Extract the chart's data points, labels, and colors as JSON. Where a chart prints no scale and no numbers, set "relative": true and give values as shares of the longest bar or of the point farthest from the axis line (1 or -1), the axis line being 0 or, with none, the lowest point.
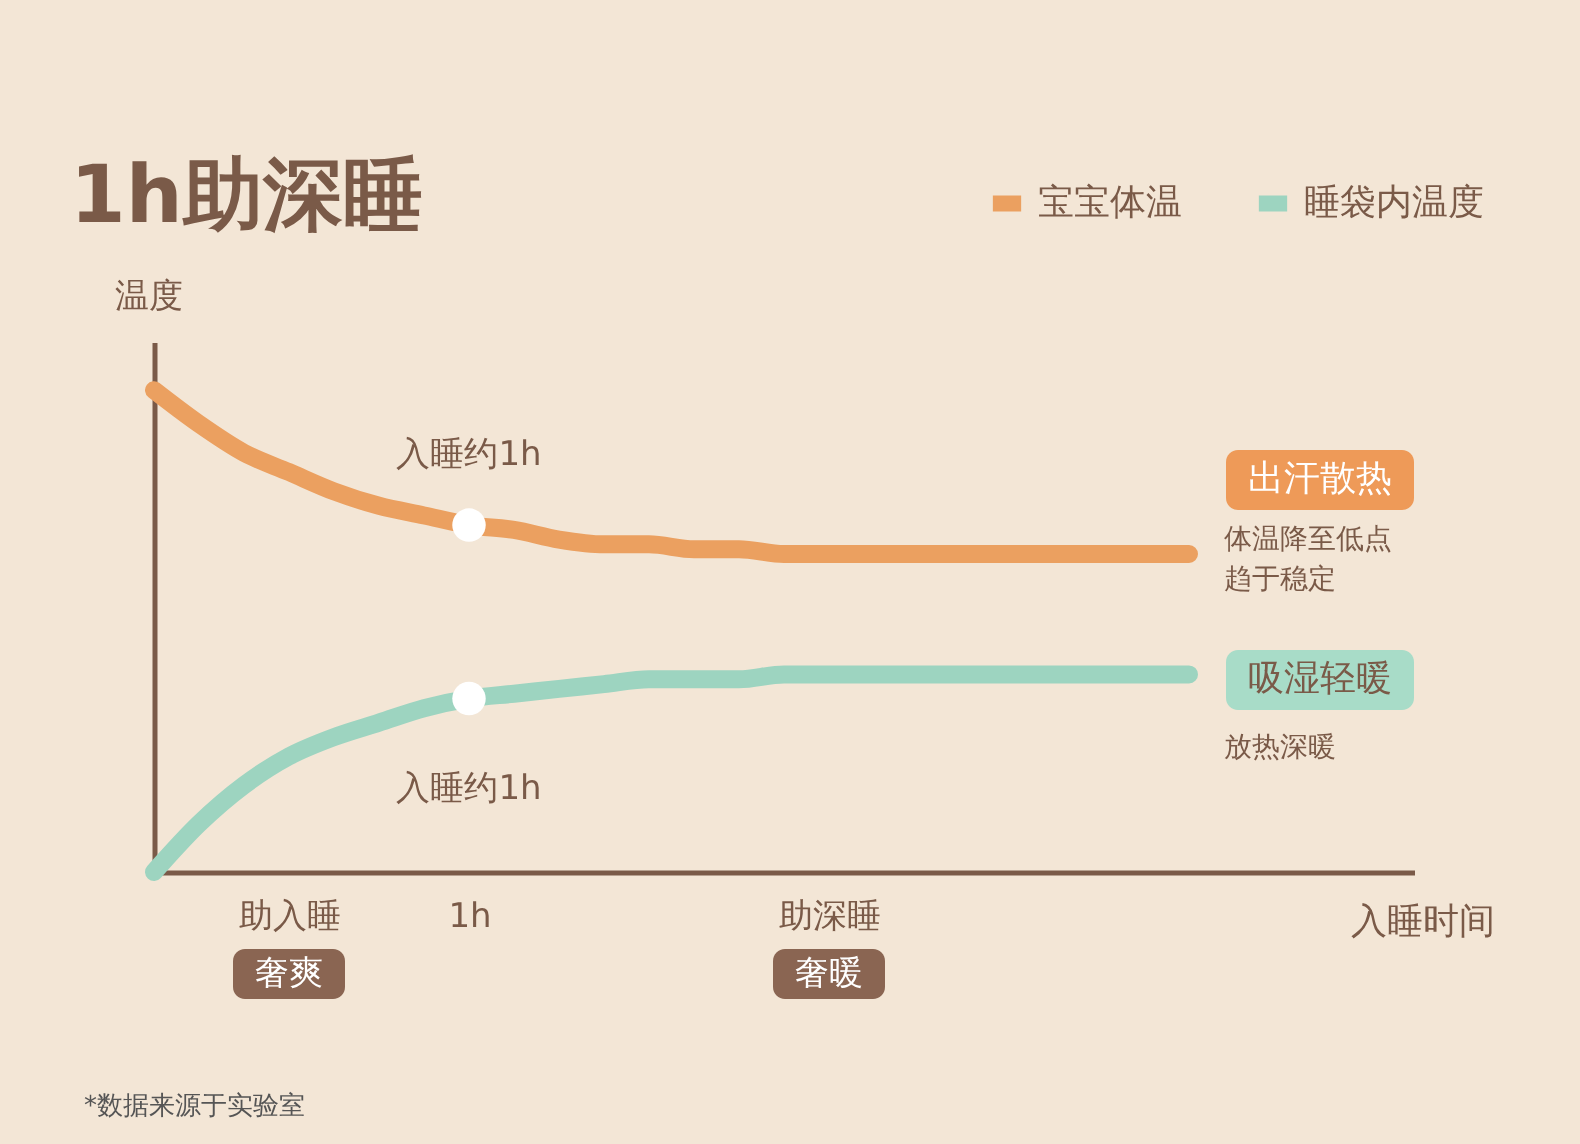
{
  "chart_data": {
    "type": "line",
    "title": "1h助深睡",
    "xlabel": "入睡时间",
    "ylabel": "温度",
    "relative": true,
    "legend": "top right",
    "categories": [
      null,
      null,
      null,
      "助入睡",
      null,
      null,
      null,
      "1h",
      null,
      null,
      null,
      null,
      null,
      null,
      null,
      "助深睡",
      null,
      null,
      null,
      null,
      null,
      null,
      null,
      null,
      null,
      null,
      null,
      null,
      null
    ],
    "series": [
      {
        "name": "宝宝体温",
        "color": "#eba060",
        "values": [
          1.0,
          0.93,
          0.87,
          0.83,
          0.79,
          0.76,
          0.74,
          0.72,
          0.71,
          0.69,
          0.68,
          0.68,
          0.67,
          0.67,
          0.66,
          0.66,
          0.66,
          0.66,
          0.66,
          0.66,
          0.66,
          0.66,
          0.66,
          0.66,
          null,
          null,
          null,
          null,
          null
        ]
      },
      {
        "name": "睡袋内温度",
        "color": "#9dd4c0",
        "values": [
          0.0,
          0.1,
          0.18,
          0.24,
          0.28,
          0.31,
          0.34,
          0.36,
          0.37,
          0.38,
          0.39,
          0.4,
          0.4,
          0.4,
          0.41,
          0.41,
          0.41,
          0.41,
          0.41,
          0.41,
          0.41,
          0.41,
          0.41,
          0.41,
          null,
          null,
          null,
          null,
          null
        ]
      }
    ],
    "annotations": [
      {
        "text": "入睡约1h",
        "x": "1h",
        "y": 0.72
      },
      {
        "text": "入睡约1h",
        "x": "1h",
        "y": 0.36
      },
      "奢爽",
      "奢暖",
      "出汗散热",
      "体温降至低点",
      "趋于稳定",
      "吸湿轻暖",
      "放热深暖",
      "*数据来源于实验室"
    ]
  }
}
